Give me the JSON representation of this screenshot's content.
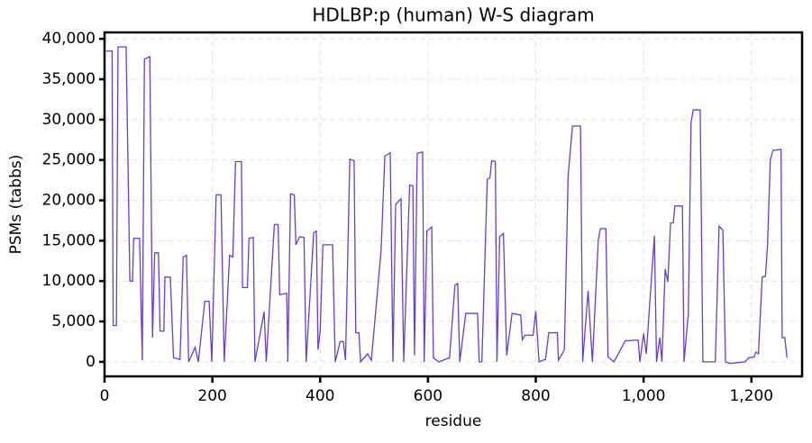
{
  "chart_data": {
    "type": "line",
    "title": "HDLBP:p (human) W-S diagram",
    "x_label": "residue",
    "y_label": "PSMs (tabbs)",
    "color": "#6a3fc7",
    "grid": true,
    "xlim": [
      0,
      1294
    ],
    "ylim": [
      -1800,
      40800
    ],
    "xticks": [
      0,
      200,
      400,
      600,
      800,
      {
        "value": 1000,
        "label": "1,000"
      },
      {
        "value": 1200,
        "label": "1,200"
      }
    ],
    "yticks": [
      0,
      {
        "value": 5000,
        "label": "5,000"
      },
      {
        "value": 10000,
        "label": "10,000"
      },
      {
        "value": 15000,
        "label": "15,000"
      },
      {
        "value": 20000,
        "label": "20,000"
      },
      {
        "value": 25000,
        "label": "25,000"
      },
      {
        "value": 30000,
        "label": "30,000"
      },
      {
        "value": 35000,
        "label": "35,000"
      },
      {
        "value": 40000,
        "label": "40,000"
      }
    ],
    "x": [
      3,
      14,
      16,
      22,
      25,
      40,
      47,
      52,
      54,
      65,
      70,
      74,
      84,
      89,
      93,
      100,
      103,
      110,
      112,
      122,
      128,
      140,
      146,
      152,
      156,
      168,
      174,
      186,
      194,
      199,
      207,
      216,
      222,
      232,
      238,
      243,
      254,
      256,
      265,
      268,
      276,
      279,
      296,
      300,
      315,
      322,
      325,
      338,
      340,
      345,
      352,
      355,
      362,
      370,
      374,
      388,
      393,
      396,
      400,
      405,
      423,
      428,
      437,
      443,
      447,
      455,
      463,
      466,
      472,
      475,
      488,
      495,
      513,
      520,
      530,
      535,
      540,
      550,
      555,
      566,
      572,
      575,
      580,
      590,
      593,
      598,
      607,
      610,
      620,
      640,
      650,
      655,
      659,
      670,
      692,
      695,
      700,
      710,
      715,
      718,
      725,
      728,
      733,
      740,
      746,
      756,
      772,
      775,
      780,
      795,
      800,
      806,
      818,
      824,
      840,
      842,
      853,
      860,
      868,
      883,
      887,
      897,
      905,
      916,
      920,
      930,
      934,
      945,
      966,
      990,
      993,
      1000,
      1005,
      1020,
      1024,
      1030,
      1034,
      1040,
      1045,
      1050,
      1055,
      1058,
      1072,
      1075,
      1083,
      1088,
      1092,
      1105,
      1110,
      1125,
      1133,
      1140,
      1147,
      1152,
      1160,
      1188,
      1195,
      1205,
      1208,
      1213,
      1220,
      1226,
      1230,
      1235,
      1240,
      1255,
      1257,
      1262,
      1266
    ],
    "values": [
      38500,
      38500,
      4500,
      4500,
      39000,
      39000,
      10000,
      10000,
      15300,
      15300,
      200,
      37500,
      37800,
      3000,
      13500,
      13500,
      3800,
      3800,
      10500,
      10500,
      500,
      300,
      13000,
      13200,
      0,
      1800,
      0,
      7500,
      7500,
      0,
      20700,
      20700,
      0,
      13200,
      13000,
      24800,
      24800,
      9200,
      9200,
      15300,
      15400,
      0,
      6200,
      0,
      17000,
      17000,
      8300,
      8500,
      0,
      20800,
      20700,
      14500,
      15500,
      15400,
      0,
      16000,
      16200,
      1500,
      3800,
      14500,
      14500,
      0,
      2500,
      2500,
      200,
      25100,
      24900,
      3600,
      3600,
      0,
      1000,
      200,
      13800,
      25500,
      25900,
      0,
      19500,
      20200,
      0,
      21900,
      21800,
      800,
      25800,
      26000,
      0,
      16200,
      16700,
      500,
      0,
      500,
      9500,
      9700,
      0,
      6000,
      6000,
      0,
      0,
      22600,
      22800,
      24900,
      24800,
      0,
      15500,
      15900,
      800,
      6000,
      5800,
      2700,
      3300,
      3300,
      6300,
      0,
      300,
      3600,
      3600,
      200,
      1500,
      23000,
      29200,
      29200,
      0,
      8800,
      0,
      15100,
      16500,
      16500,
      600,
      0,
      2600,
      2700,
      0,
      3500,
      1000,
      15600,
      0,
      3000,
      0,
      11500,
      9900,
      17200,
      17200,
      19300,
      19300,
      0,
      6000,
      29600,
      31200,
      31200,
      0,
      0,
      0,
      16800,
      16300,
      0,
      -200,
      0,
      500,
      600,
      1200,
      1000,
      10500,
      10600,
      14600,
      25000,
      26200,
      26300,
      3000,
      3000,
      500
    ]
  }
}
